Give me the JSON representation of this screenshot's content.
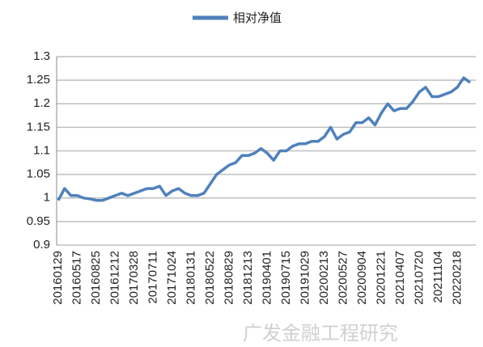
{
  "chart_data": {
    "type": "line",
    "categories": [
      "20160129",
      null,
      null,
      "20160517",
      null,
      null,
      "20160825",
      null,
      null,
      "20161212",
      null,
      null,
      "20170328",
      null,
      null,
      "20170711",
      null,
      null,
      "20171024",
      null,
      null,
      "20180131",
      null,
      null,
      "20180522",
      null,
      null,
      "20180829",
      null,
      null,
      "20181213",
      null,
      null,
      "20190401",
      null,
      null,
      "20190715",
      null,
      null,
      "20191029",
      null,
      null,
      "20200213",
      null,
      null,
      "20200527",
      null,
      null,
      "20200904",
      null,
      null,
      "20201221",
      null,
      null,
      "20210407",
      null,
      null,
      "20210720",
      null,
      null,
      "20211104",
      null,
      null,
      "20220218",
      null,
      null
    ],
    "series": [
      {
        "name": "相对净值",
        "color": "#4f81bd",
        "values": [
          0.995,
          1.02,
          1.005,
          1.005,
          1.0,
          0.998,
          0.995,
          0.995,
          1.0,
          1.005,
          1.01,
          1.005,
          1.01,
          1.015,
          1.02,
          1.02,
          1.025,
          1.005,
          1.015,
          1.02,
          1.01,
          1.005,
          1.005,
          1.01,
          1.03,
          1.05,
          1.06,
          1.07,
          1.075,
          1.09,
          1.09,
          1.095,
          1.105,
          1.095,
          1.08,
          1.1,
          1.1,
          1.11,
          1.115,
          1.115,
          1.12,
          1.12,
          1.13,
          1.15,
          1.125,
          1.135,
          1.14,
          1.16,
          1.16,
          1.17,
          1.155,
          1.18,
          1.2,
          1.185,
          1.19,
          1.19,
          1.205,
          1.225,
          1.235,
          1.215,
          1.215,
          1.22,
          1.225,
          1.235,
          1.255,
          1.245
        ]
      }
    ],
    "ylim": [
      0.9,
      1.3
    ],
    "yticks": [
      0.9,
      0.95,
      1,
      1.05,
      1.1,
      1.15,
      1.2,
      1.25,
      1.3
    ],
    "grid": true,
    "legend": "top",
    "watermark": "广发金融工程研究"
  }
}
